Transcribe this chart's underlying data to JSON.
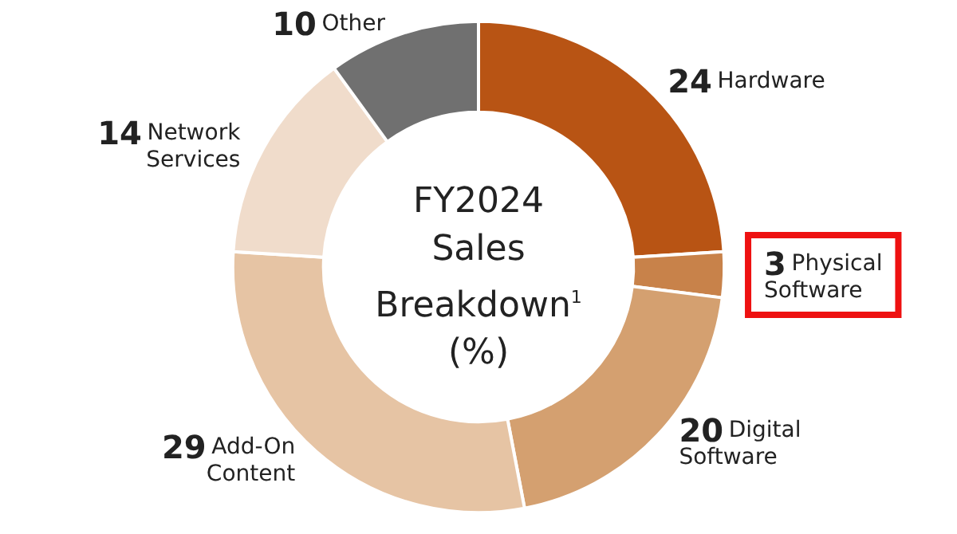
{
  "chart_data": {
    "type": "donut",
    "title": "FY2024 Sales Breakdown$^{1}$ (%)",
    "categories": [
      "Hardware",
      "Physical Software",
      "Digital Software",
      "Add-On Content",
      "Network Services",
      "Other"
    ],
    "values": [
      24,
      3,
      20,
      29,
      14,
      10
    ],
    "colors": [
      "#b85414",
      "#c8824a",
      "#d4a070",
      "#e6c4a4",
      "#f0dccb",
      "#707070"
    ],
    "data_labels": true,
    "legend": false
  }
}
